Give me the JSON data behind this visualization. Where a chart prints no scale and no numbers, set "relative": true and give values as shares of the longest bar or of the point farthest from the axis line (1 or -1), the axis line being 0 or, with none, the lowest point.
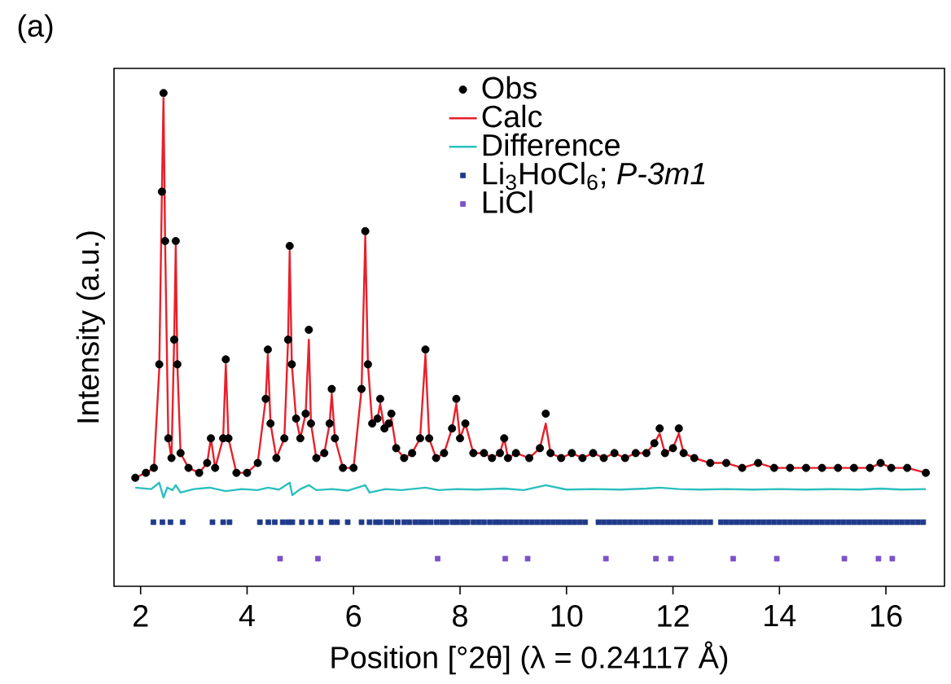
{
  "chart_data": {
    "type": "scatter",
    "title": "(a)",
    "xlabel": "Position [°2θ] (λ = 0.24117 Å)",
    "ylabel": "Intensity (a.u.)",
    "relative": true,
    "xlim": [
      1.5,
      17.1
    ],
    "xticks": [
      2,
      4,
      6,
      8,
      10,
      12,
      14,
      16
    ],
    "legend": "top",
    "grid": false,
    "series": [
      {
        "name": "Obs",
        "type": "scatter",
        "marker": "circle",
        "color": "#000000",
        "x": [
          1.9,
          2.1,
          2.25,
          2.35,
          2.4,
          2.43,
          2.46,
          2.52,
          2.58,
          2.63,
          2.66,
          2.69,
          2.75,
          2.9,
          3.1,
          3.25,
          3.32,
          3.4,
          3.55,
          3.6,
          3.65,
          3.8,
          4.0,
          4.2,
          4.35,
          4.39,
          4.44,
          4.55,
          4.7,
          4.77,
          4.8,
          4.84,
          4.92,
          5.0,
          5.1,
          5.16,
          5.2,
          5.3,
          5.45,
          5.55,
          5.59,
          5.65,
          5.8,
          6.0,
          6.15,
          6.22,
          6.27,
          6.35,
          6.45,
          6.5,
          6.58,
          6.66,
          6.71,
          6.8,
          6.95,
          7.1,
          7.25,
          7.35,
          7.42,
          7.55,
          7.7,
          7.85,
          7.93,
          8.0,
          8.1,
          8.25,
          8.45,
          8.6,
          8.75,
          8.83,
          8.9,
          9.05,
          9.3,
          9.5,
          9.61,
          9.7,
          9.9,
          10.1,
          10.3,
          10.5,
          10.7,
          10.9,
          11.1,
          11.3,
          11.5,
          11.65,
          11.75,
          11.85,
          12.0,
          12.11,
          12.2,
          12.4,
          12.7,
          13.0,
          13.3,
          13.6,
          13.9,
          14.2,
          14.5,
          14.8,
          15.1,
          15.4,
          15.7,
          15.9,
          16.1,
          16.4,
          16.75
        ],
        "values": [
          0.22,
          0.23,
          0.24,
          0.45,
          0.8,
          1.0,
          0.7,
          0.3,
          0.26,
          0.5,
          0.7,
          0.45,
          0.27,
          0.24,
          0.23,
          0.25,
          0.3,
          0.24,
          0.3,
          0.46,
          0.3,
          0.23,
          0.23,
          0.25,
          0.38,
          0.48,
          0.33,
          0.26,
          0.3,
          0.5,
          0.69,
          0.45,
          0.34,
          0.3,
          0.35,
          0.52,
          0.33,
          0.26,
          0.27,
          0.33,
          0.4,
          0.3,
          0.24,
          0.24,
          0.4,
          0.72,
          0.45,
          0.33,
          0.34,
          0.38,
          0.32,
          0.33,
          0.35,
          0.28,
          0.26,
          0.27,
          0.3,
          0.48,
          0.3,
          0.26,
          0.27,
          0.32,
          0.38,
          0.3,
          0.33,
          0.27,
          0.27,
          0.26,
          0.27,
          0.3,
          0.26,
          0.27,
          0.26,
          0.28,
          0.35,
          0.27,
          0.26,
          0.27,
          0.26,
          0.27,
          0.26,
          0.27,
          0.26,
          0.27,
          0.27,
          0.29,
          0.32,
          0.27,
          0.28,
          0.32,
          0.27,
          0.26,
          0.25,
          0.25,
          0.24,
          0.25,
          0.24,
          0.24,
          0.24,
          0.24,
          0.24,
          0.24,
          0.24,
          0.25,
          0.24,
          0.24,
          0.23
        ]
      },
      {
        "name": "Calc",
        "type": "line",
        "color": "#e8202a",
        "x": [
          1.9,
          2.1,
          2.25,
          2.35,
          2.4,
          2.43,
          2.46,
          2.52,
          2.58,
          2.63,
          2.66,
          2.69,
          2.75,
          2.9,
          3.1,
          3.25,
          3.32,
          3.4,
          3.55,
          3.6,
          3.65,
          3.8,
          4.0,
          4.2,
          4.35,
          4.39,
          4.44,
          4.55,
          4.7,
          4.77,
          4.8,
          4.84,
          4.92,
          5.0,
          5.1,
          5.16,
          5.2,
          5.3,
          5.45,
          5.55,
          5.59,
          5.65,
          5.8,
          6.0,
          6.15,
          6.22,
          6.27,
          6.35,
          6.45,
          6.5,
          6.58,
          6.66,
          6.71,
          6.8,
          6.95,
          7.1,
          7.25,
          7.35,
          7.42,
          7.55,
          7.7,
          7.85,
          7.93,
          8.0,
          8.1,
          8.25,
          8.45,
          8.6,
          8.75,
          8.83,
          8.9,
          9.05,
          9.3,
          9.5,
          9.61,
          9.7,
          9.9,
          10.1,
          10.3,
          10.5,
          10.7,
          10.9,
          11.1,
          11.3,
          11.5,
          11.65,
          11.75,
          11.85,
          12.0,
          12.11,
          12.2,
          12.4,
          12.7,
          13.0,
          13.3,
          13.6,
          13.9,
          14.2,
          14.5,
          14.8,
          15.1,
          15.4,
          15.7,
          15.9,
          16.1,
          16.4,
          16.75
        ],
        "values": [
          0.22,
          0.23,
          0.24,
          0.44,
          0.8,
          0.99,
          0.7,
          0.3,
          0.26,
          0.5,
          0.69,
          0.45,
          0.27,
          0.24,
          0.23,
          0.25,
          0.3,
          0.24,
          0.3,
          0.45,
          0.3,
          0.23,
          0.23,
          0.25,
          0.38,
          0.47,
          0.33,
          0.26,
          0.3,
          0.5,
          0.68,
          0.45,
          0.34,
          0.3,
          0.35,
          0.5,
          0.33,
          0.26,
          0.27,
          0.33,
          0.39,
          0.3,
          0.24,
          0.24,
          0.4,
          0.71,
          0.45,
          0.33,
          0.34,
          0.37,
          0.32,
          0.33,
          0.34,
          0.28,
          0.26,
          0.27,
          0.3,
          0.47,
          0.3,
          0.26,
          0.27,
          0.32,
          0.37,
          0.3,
          0.33,
          0.27,
          0.27,
          0.26,
          0.27,
          0.3,
          0.26,
          0.27,
          0.26,
          0.28,
          0.33,
          0.27,
          0.26,
          0.27,
          0.26,
          0.27,
          0.26,
          0.27,
          0.26,
          0.27,
          0.27,
          0.29,
          0.31,
          0.27,
          0.28,
          0.31,
          0.27,
          0.26,
          0.25,
          0.25,
          0.24,
          0.25,
          0.24,
          0.24,
          0.24,
          0.24,
          0.24,
          0.24,
          0.24,
          0.25,
          0.24,
          0.24,
          0.23
        ]
      },
      {
        "name": "Difference",
        "type": "line",
        "color": "#2bbfbf",
        "x": [
          1.9,
          2.2,
          2.35,
          2.43,
          2.5,
          2.6,
          2.66,
          2.75,
          3.0,
          3.3,
          3.6,
          3.9,
          4.2,
          4.39,
          4.6,
          4.8,
          4.85,
          5.0,
          5.16,
          5.3,
          5.6,
          5.9,
          6.22,
          6.3,
          6.6,
          6.9,
          7.35,
          7.6,
          7.93,
          8.3,
          8.83,
          9.2,
          9.61,
          10.0,
          10.5,
          11.0,
          11.5,
          11.75,
          12.11,
          12.5,
          13.0,
          13.5,
          14.0,
          14.5,
          15.0,
          15.5,
          15.9,
          16.3,
          16.75
        ],
        "values": [
          0.2,
          0.197,
          0.21,
          0.18,
          0.2,
          0.195,
          0.205,
          0.19,
          0.197,
          0.2,
          0.193,
          0.197,
          0.195,
          0.2,
          0.196,
          0.21,
          0.185,
          0.197,
          0.205,
          0.195,
          0.197,
          0.194,
          0.205,
          0.19,
          0.197,
          0.195,
          0.2,
          0.195,
          0.197,
          0.196,
          0.198,
          0.195,
          0.205,
          0.196,
          0.197,
          0.196,
          0.198,
          0.2,
          0.197,
          0.196,
          0.197,
          0.196,
          0.197,
          0.196,
          0.197,
          0.196,
          0.198,
          0.196,
          0.197
        ]
      },
      {
        "name": "Li$_{3}$HoCl$_{6}$; *P-3m1*",
        "type": "scatter",
        "marker": "square",
        "color": "#1f3a8a",
        "x": [
          2.24,
          2.41,
          2.56,
          2.79,
          3.35,
          3.55,
          3.67,
          4.24,
          4.4,
          4.52,
          4.67,
          4.77,
          4.85,
          5.03,
          5.2,
          5.38,
          5.59,
          5.69,
          5.89,
          6.15,
          6.3,
          6.42,
          6.5,
          6.62,
          6.71,
          6.83,
          6.95,
          7.05,
          7.16,
          7.26,
          7.35,
          7.45,
          7.56,
          7.66,
          7.75,
          7.86,
          7.95,
          8.05,
          8.14,
          8.25,
          8.35,
          8.45,
          8.56,
          8.66,
          8.75,
          8.85,
          8.95,
          9.05,
          9.15,
          9.25,
          9.35,
          9.45,
          9.55,
          9.65,
          9.75,
          9.85,
          9.95,
          10.05,
          10.15,
          10.25,
          10.35,
          10.6,
          10.7,
          10.8,
          10.9,
          11.0,
          11.1,
          11.2,
          11.3,
          11.4,
          11.5,
          11.6,
          11.7,
          11.8,
          11.9,
          12.0,
          12.1,
          12.2,
          12.3,
          12.4,
          12.5,
          12.6,
          12.7,
          12.9,
          13.0,
          13.1,
          13.2,
          13.3,
          13.4,
          13.5,
          13.6,
          13.7,
          13.8,
          13.9,
          14.0,
          14.1,
          14.2,
          14.3,
          14.4,
          14.5,
          14.6,
          14.7,
          14.8,
          14.9,
          15.0,
          15.1,
          15.2,
          15.3,
          15.4,
          15.5,
          15.6,
          15.7,
          15.8,
          15.9,
          16.0,
          16.1,
          16.2,
          16.3,
          16.4,
          16.5,
          16.6,
          16.7
        ],
        "values": [
          0.13,
          0.13,
          0.13,
          0.13,
          0.13,
          0.13,
          0.13,
          0.13,
          0.13,
          0.13,
          0.13,
          0.13,
          0.13,
          0.13,
          0.13,
          0.13,
          0.13,
          0.13,
          0.13,
          0.13,
          0.13,
          0.13,
          0.13,
          0.13,
          0.13,
          0.13,
          0.13,
          0.13,
          0.13,
          0.13,
          0.13,
          0.13,
          0.13,
          0.13,
          0.13,
          0.13,
          0.13,
          0.13,
          0.13,
          0.13,
          0.13,
          0.13,
          0.13,
          0.13,
          0.13,
          0.13,
          0.13,
          0.13,
          0.13,
          0.13,
          0.13,
          0.13,
          0.13,
          0.13,
          0.13,
          0.13,
          0.13,
          0.13,
          0.13,
          0.13,
          0.13,
          0.13,
          0.13,
          0.13,
          0.13,
          0.13,
          0.13,
          0.13,
          0.13,
          0.13,
          0.13,
          0.13,
          0.13,
          0.13,
          0.13,
          0.13,
          0.13,
          0.13,
          0.13,
          0.13,
          0.13,
          0.13,
          0.13,
          0.13,
          0.13,
          0.13,
          0.13,
          0.13,
          0.13,
          0.13,
          0.13,
          0.13,
          0.13,
          0.13,
          0.13,
          0.13,
          0.13,
          0.13,
          0.13,
          0.13,
          0.13,
          0.13,
          0.13,
          0.13,
          0.13,
          0.13,
          0.13,
          0.13,
          0.13,
          0.13,
          0.13,
          0.13,
          0.13,
          0.13,
          0.13,
          0.13,
          0.13,
          0.13,
          0.13,
          0.13,
          0.13,
          0.13
        ]
      },
      {
        "name": "LiCl",
        "type": "scatter",
        "marker": "square",
        "color": "#7b52c8",
        "x": [
          4.62,
          5.33,
          7.58,
          8.85,
          9.27,
          10.74,
          11.68,
          11.96,
          13.13,
          13.95,
          15.22,
          15.86,
          16.12
        ],
        "values": [
          0.056,
          0.056,
          0.056,
          0.056,
          0.056,
          0.056,
          0.056,
          0.056,
          0.056,
          0.056,
          0.056,
          0.056,
          0.056
        ]
      }
    ]
  }
}
